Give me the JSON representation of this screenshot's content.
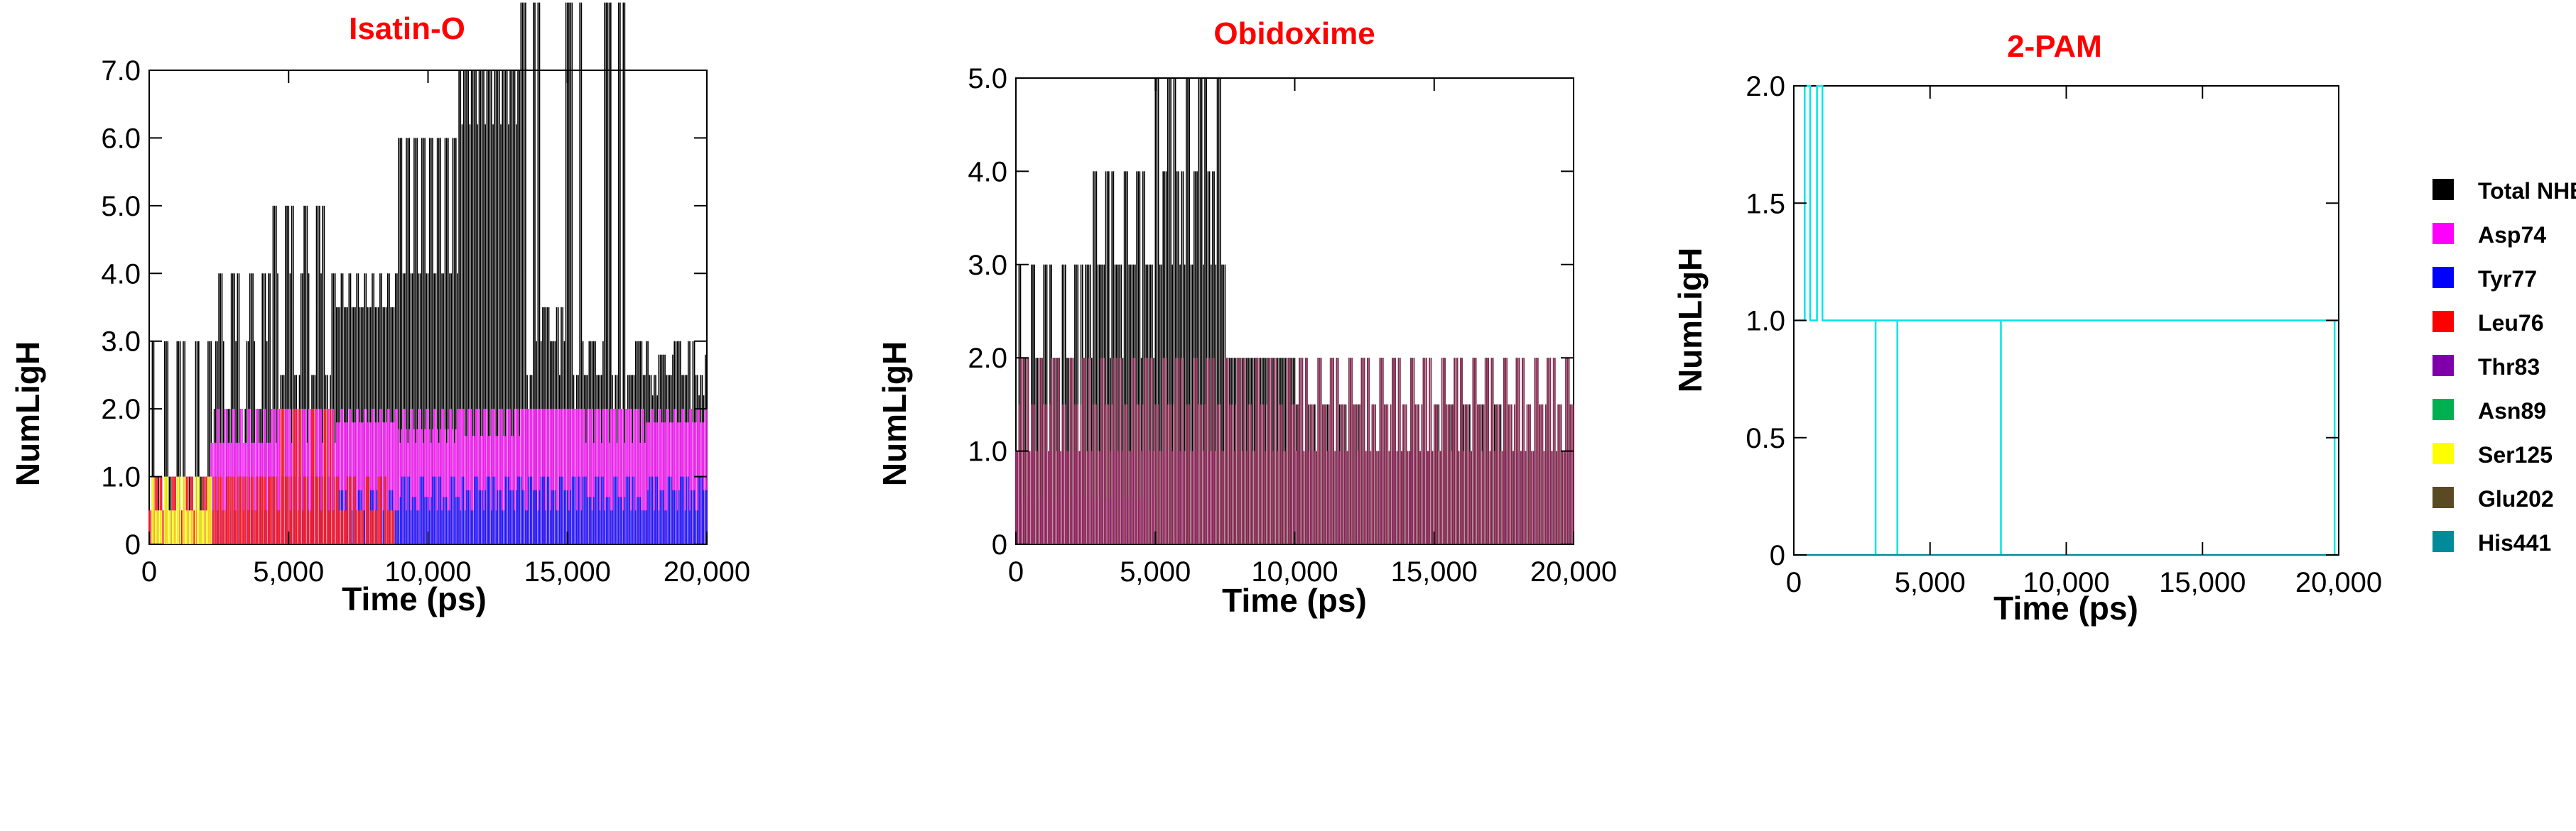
{
  "chart_data": [
    {
      "type": "line",
      "title": "Isatin-O",
      "xlabel": "Time (ps)",
      "ylabel": "NumLigH",
      "xlim": [
        0,
        20000
      ],
      "ylim": [
        0,
        7
      ],
      "x_ticks": [
        0,
        5000,
        10000,
        15000,
        20000
      ],
      "x_tick_labels": [
        "0",
        "5,000",
        "10,000",
        "15,000",
        "20,000"
      ],
      "y_ticks": [
        0,
        1,
        2,
        3,
        4,
        5,
        6,
        7
      ],
      "y_tick_labels": [
        "0",
        "1.0",
        "2.0",
        "3.0",
        "4.0",
        "5.0",
        "6.0",
        "7.0"
      ],
      "series": [
        {
          "name": "Total NHB",
          "color": "#000000",
          "segments": [
            [
              0,
              1,
              3,
              1
            ],
            [
              3,
              2,
              4,
              1
            ],
            [
              4,
              2.5,
              5,
              1
            ],
            [
              5,
              3,
              3.5,
              4,
              3
            ],
            [
              6,
              3,
              4,
              4,
              2.5
            ],
            [
              7,
              3,
              4.5,
              6.2,
              3
            ],
            [
              8,
              2.5,
              3,
              3.5,
              3,
              2
            ],
            [
              8,
              2.5,
              3,
              2.5,
              2,
              2
            ],
            [
              2,
              2.5,
              3,
              2.5,
              2.8,
              2.2
            ]
          ]
        },
        {
          "name": "Asp74",
          "color": "#ff00ff",
          "segments": [
            [
              0.5,
              1,
              0.5,
              0
            ],
            [
              1,
              1.5,
              2,
              1.5,
              1
            ],
            [
              1,
              2,
              1.5,
              2,
              1.5
            ],
            [
              1.5,
              2,
              1.8,
              2,
              1.5
            ],
            [
              1.5,
              2,
              1.7,
              2,
              1.5
            ],
            [
              1.5,
              2,
              1.8,
              2,
              1.6
            ],
            [
              1.5,
              2,
              1.6,
              2,
              1.5
            ],
            [
              1.5,
              2,
              1.7,
              2,
              1.5
            ],
            [
              1.5,
              2,
              1.8,
              2,
              1.5
            ]
          ]
        },
        {
          "name": "Tyr77",
          "color": "#0000ff",
          "segments": [
            [
              0,
              0,
              0,
              0
            ],
            [
              0.5,
              1,
              0.5,
              0
            ],
            [
              0.5,
              1,
              1,
              0.5
            ],
            [
              0.5,
              1,
              0.8,
              0.5
            ],
            [
              0.5,
              1,
              0.7,
              0.5
            ],
            [
              0.5,
              1,
              0.8,
              0.5
            ],
            [
              0.5,
              1,
              0.8,
              0.5
            ],
            [
              0.5,
              1,
              0.7,
              0.5
            ],
            [
              0.5,
              1,
              0.8,
              0.5
            ]
          ]
        },
        {
          "name": "Leu76",
          "color": "#ff0000",
          "segments": [
            [
              0.5,
              1,
              0.5,
              0
            ],
            [
              0.5,
              1,
              1,
              0.5
            ],
            [
              0.5,
              2,
              1,
              0.5
            ],
            [
              0.5,
              1,
              0.5,
              0
            ],
            [
              0,
              0,
              0,
              0
            ],
            [
              0,
              0,
              0,
              0
            ],
            [
              0,
              0,
              0,
              0
            ],
            [
              0,
              0,
              0,
              0
            ],
            [
              0,
              0,
              0,
              0
            ]
          ]
        },
        {
          "name": "Ser125",
          "color": "#ffff00",
          "segments": [
            [
              0,
              0.5,
              1,
              0.5
            ],
            [
              0,
              0,
              0,
              0
            ],
            [
              0,
              0,
              0,
              0
            ],
            [
              0,
              0,
              0,
              0
            ],
            [
              0,
              0,
              0,
              0
            ],
            [
              0,
              0,
              0,
              0
            ],
            [
              0,
              0,
              0,
              0
            ],
            [
              0,
              0,
              0,
              0
            ],
            [
              0,
              0,
              0,
              0
            ]
          ]
        }
      ]
    },
    {
      "type": "line",
      "title": "Obidoxime",
      "xlabel": "Time (ps)",
      "ylabel": "NumLigH",
      "xlim": [
        0,
        20000
      ],
      "ylim": [
        0,
        5
      ],
      "x_ticks": [
        0,
        5000,
        10000,
        15000,
        20000
      ],
      "x_tick_labels": [
        "0",
        "5,000",
        "10,000",
        "15,000",
        "20,000"
      ],
      "y_ticks": [
        0,
        1,
        2,
        3,
        4,
        5
      ],
      "y_tick_labels": [
        "0",
        "1.0",
        "2.0",
        "3.0",
        "4.0",
        "5.0"
      ],
      "series": [
        {
          "name": "Total NHB",
          "color": "#000000",
          "segments": [
            [
              1,
              2,
              3,
              2
            ],
            [
              2,
              3,
              4,
              3
            ],
            [
              3,
              4,
              5,
              3
            ],
            [
              2,
              2,
              2,
              2
            ],
            [
              1.5,
              2,
              1.5,
              1
            ],
            [
              1,
              2,
              1.5,
              1
            ],
            [
              1.5,
              2,
              1.5,
              1
            ],
            [
              1,
              2,
              1.5,
              1
            ]
          ]
        },
        {
          "name": "Asp74",
          "color": "#ff00ff",
          "segments": [
            [
              1,
              0.5,
              1,
              0
            ],
            [
              0.5,
              1,
              0.5,
              0
            ],
            [
              0,
              1,
              0,
              0
            ],
            [
              0,
              0,
              0,
              0
            ],
            [
              0,
              0,
              0,
              0
            ],
            [
              0,
              0,
              0,
              0
            ],
            [
              0,
              0,
              0,
              0
            ],
            [
              0,
              0,
              0,
              0
            ]
          ]
        },
        {
          "name": "Thr83",
          "color": "#7f00aa",
          "segments": [
            [
              0,
              0,
              0,
              0
            ],
            [
              0,
              0,
              0,
              0
            ],
            [
              0,
              0,
              0,
              0
            ],
            [
              0,
              0,
              0,
              0
            ],
            [
              1,
              0,
              0,
              0
            ],
            [
              0,
              1,
              0,
              0
            ],
            [
              0,
              0,
              0,
              0
            ],
            [
              0,
              1,
              0,
              0
            ]
          ]
        },
        {
          "name": "Glu202",
          "color": "#7a0e3a",
          "segments": [
            [
              1,
              2,
              1.5,
              1
            ],
            [
              1,
              2,
              1.5,
              1
            ],
            [
              1,
              2,
              1.5,
              1
            ],
            [
              1,
              2,
              1.5,
              1
            ],
            [
              1,
              2,
              1.5,
              1
            ],
            [
              1,
              2,
              1.5,
              1
            ],
            [
              1,
              2,
              1.5,
              1
            ],
            [
              1,
              2,
              1.5,
              1
            ]
          ]
        }
      ]
    },
    {
      "type": "line",
      "title": "2-PAM",
      "xlabel": "Time (ps)",
      "ylabel": "NumLigH",
      "xlim": [
        0,
        20000
      ],
      "ylim": [
        0,
        2
      ],
      "x_ticks": [
        0,
        5000,
        10000,
        15000,
        20000
      ],
      "x_tick_labels": [
        "0",
        "5,000",
        "10,000",
        "15,000",
        "20,000"
      ],
      "y_ticks": [
        0,
        0.5,
        1,
        1.5,
        2
      ],
      "y_tick_labels": [
        "0",
        "0.5",
        "1.0",
        "1.5",
        "2.0"
      ],
      "series": [
        {
          "name": "Total NHB",
          "color": "#00e5e5",
          "x": [
            0,
            400,
            400,
            600,
            600,
            850,
            850,
            1050,
            1050,
            3000,
            3000,
            3000,
            3000,
            3800,
            3800,
            3800,
            3800,
            7600,
            7600,
            7600,
            7600,
            19850,
            19850,
            19850,
            19850,
            20000
          ],
          "y": [
            1,
            1,
            2,
            2,
            1,
            1,
            2,
            2,
            1,
            1,
            0,
            0.5,
            1,
            1,
            0,
            0,
            1,
            1,
            0,
            0.5,
            1,
            1,
            0,
            0.5,
            1,
            1
          ]
        },
        {
          "name": "His441",
          "color": "#008b9b",
          "x": [
            0,
            20000
          ],
          "y": [
            0,
            0
          ]
        }
      ]
    }
  ],
  "legend": {
    "items": [
      {
        "label": "Total NHB",
        "color": "#000000"
      },
      {
        "label": "Asp74",
        "color": "#ff00ff"
      },
      {
        "label": "Tyr77",
        "color": "#0000ff"
      },
      {
        "label": "Leu76",
        "color": "#ff0000"
      },
      {
        "label": "Thr83",
        "color": "#7f00aa"
      },
      {
        "label": "Asn89",
        "color": "#00b050"
      },
      {
        "label": "Ser125",
        "color": "#ffff00"
      },
      {
        "label": "Glu202",
        "color": "#5a4a24"
      },
      {
        "label": "His441",
        "color": "#008b9b"
      }
    ]
  }
}
